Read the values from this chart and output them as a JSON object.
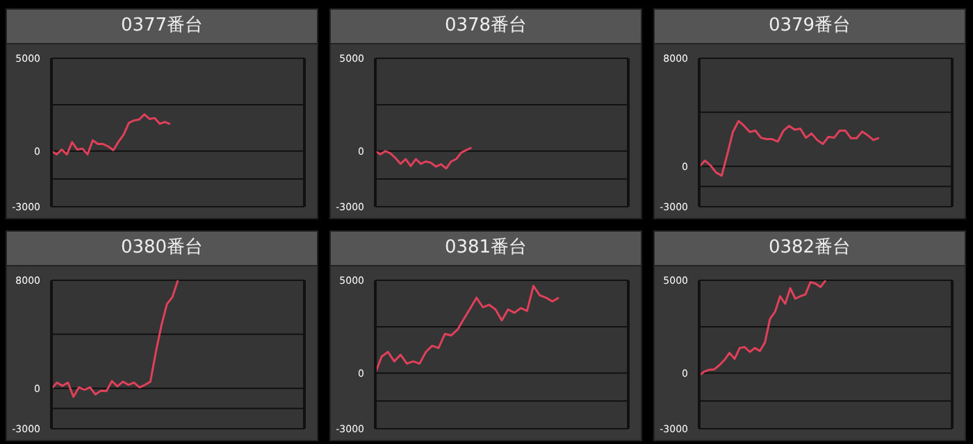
{
  "chart_data": [
    {
      "type": "line",
      "title": "0377番台",
      "color": "#e0405a",
      "marker": "none",
      "grid": "y",
      "tick_labels": "y",
      "ylim": [
        -3000,
        5000
      ],
      "yticks": [
        -3000,
        {
          "value": -1500,
          "label": null
        },
        0,
        {
          "value": 2500,
          "label": null
        },
        5000
      ],
      "categories": [
        null,
        null,
        null,
        null,
        null,
        null,
        null,
        null,
        null,
        null,
        null,
        null,
        null,
        null,
        null,
        null,
        null,
        null,
        null,
        null,
        null,
        null,
        null,
        null,
        null,
        null,
        null,
        null,
        null,
        null,
        null,
        null,
        null,
        null,
        null,
        null,
        null,
        null,
        null,
        null,
        null,
        null,
        null,
        null,
        null,
        null,
        null,
        null,
        null,
        null
      ],
      "values": [
        0,
        -180,
        80,
        -180,
        480,
        80,
        130,
        -180,
        580,
        380,
        380,
        250,
        50,
        510,
        890,
        1520,
        1650,
        1700,
        1980,
        1730,
        1780,
        1470,
        1570,
        1450,
        null,
        null,
        null,
        null,
        null,
        null,
        null,
        null,
        null,
        null,
        null,
        null,
        null,
        null,
        null,
        null,
        null,
        null,
        null,
        null,
        null,
        null,
        null,
        null,
        null,
        null
      ]
    },
    {
      "type": "line",
      "title": "0378番台",
      "color": "#e0405a",
      "marker": "none",
      "grid": "y",
      "tick_labels": "y",
      "ylim": [
        -3000,
        5000
      ],
      "yticks": [
        -3000,
        {
          "value": -1500,
          "label": null
        },
        0,
        {
          "value": 2500,
          "label": null
        },
        5000
      ],
      "categories": [
        null,
        null,
        null,
        null,
        null,
        null,
        null,
        null,
        null,
        null,
        null,
        null,
        null,
        null,
        null,
        null,
        null,
        null,
        null,
        null,
        null,
        null,
        null,
        null,
        null,
        null,
        null,
        null,
        null,
        null,
        null,
        null,
        null,
        null,
        null,
        null,
        null,
        null,
        null,
        null,
        null,
        null,
        null,
        null,
        null,
        null,
        null,
        null,
        null,
        null,
        null
      ],
      "values": [
        0,
        -180,
        0,
        -130,
        -380,
        -690,
        -430,
        -810,
        -430,
        -690,
        -560,
        -630,
        -840,
        -710,
        -940,
        -560,
        -430,
        -80,
        50,
        180,
        null,
        null,
        null,
        null,
        null,
        null,
        null,
        null,
        null,
        null,
        null,
        null,
        null,
        null,
        null,
        null,
        null,
        null,
        null,
        null,
        null,
        null,
        null,
        null,
        null,
        null,
        null,
        null,
        null,
        null,
        null
      ]
    },
    {
      "type": "line",
      "title": "0379番台",
      "color": "#e0405a",
      "marker": "none",
      "grid": "y",
      "tick_labels": "y",
      "ylim": [
        -3000,
        8000
      ],
      "yticks": [
        -3000,
        {
          "value": -1500,
          "label": null
        },
        0,
        {
          "value": 4000,
          "label": null
        },
        8000
      ],
      "categories": [
        null,
        null,
        null,
        null,
        null,
        null,
        null,
        null,
        null,
        null,
        null,
        null,
        null,
        null,
        null,
        null,
        null,
        null,
        null,
        null,
        null,
        null,
        null,
        null,
        null,
        null,
        null,
        null,
        null,
        null,
        null,
        null,
        null,
        null,
        null,
        null,
        null,
        null,
        null,
        null,
        null,
        null,
        null,
        null,
        null,
        null
      ],
      "values": [
        -40,
        420,
        70,
        -460,
        -700,
        880,
        2540,
        3350,
        2990,
        2540,
        2640,
        2110,
        2010,
        2010,
        1830,
        2640,
        2990,
        2710,
        2780,
        2110,
        2430,
        1940,
        1650,
        2180,
        2110,
        2640,
        2640,
        2080,
        2080,
        2570,
        2290,
        1940,
        2110,
        null,
        null,
        null,
        null,
        null,
        null,
        null,
        null,
        null,
        null,
        null,
        null,
        null
      ]
    },
    {
      "type": "line",
      "title": "0380番台",
      "color": "#e0405a",
      "marker": "none",
      "grid": "y",
      "tick_labels": "y",
      "ylim": [
        -3000,
        8000
      ],
      "yticks": [
        -3000,
        {
          "value": -1500,
          "label": null
        },
        0,
        {
          "value": 4000,
          "label": null
        },
        8000
      ],
      "categories": [
        null,
        null,
        null,
        null,
        null,
        null,
        null,
        null,
        null,
        null,
        null,
        null,
        null,
        null,
        null,
        null,
        null,
        null,
        null,
        null,
        null,
        null,
        null,
        null,
        null,
        null,
        null,
        null,
        null,
        null,
        null,
        null,
        null,
        null,
        null,
        null,
        null,
        null,
        null,
        null,
        null,
        null,
        null,
        null,
        null,
        null,
        null
      ],
      "values": [
        -40,
        420,
        180,
        420,
        -630,
        70,
        -110,
        70,
        -460,
        -180,
        -210,
        530,
        140,
        490,
        250,
        420,
        70,
        250,
        490,
        2710,
        4650,
        6230,
        6760,
        8000,
        null,
        null,
        null,
        null,
        null,
        null,
        null,
        null,
        null,
        null,
        null,
        null,
        null,
        null,
        null,
        null,
        null,
        null,
        null,
        null,
        null,
        null,
        null
      ]
    },
    {
      "type": "line",
      "title": "0381番台",
      "color": "#e0405a",
      "marker": "none",
      "grid": "y",
      "tick_labels": "y",
      "ylim": [
        -3000,
        5000
      ],
      "yticks": [
        -3000,
        {
          "value": -1500,
          "label": null
        },
        0,
        {
          "value": 2500,
          "label": null
        },
        5000
      ],
      "categories": [
        null,
        null,
        null,
        null,
        null,
        null,
        null,
        null,
        null,
        null,
        null,
        null,
        null,
        null,
        null,
        null,
        null,
        null,
        null,
        null,
        null,
        null,
        null,
        null,
        null,
        null,
        null,
        null,
        null,
        null,
        null,
        null,
        null,
        null,
        null,
        null,
        null,
        null,
        null,
        null,
        null
      ],
      "values": [
        0,
        890,
        1140,
        630,
        990,
        510,
        630,
        510,
        1140,
        1470,
        1350,
        2110,
        2030,
        2340,
        2920,
        3480,
        4060,
        3550,
        3680,
        3430,
        2840,
        3430,
        3250,
        3500,
        3350,
        4700,
        4190,
        4060,
        3860,
        4060,
        null,
        null,
        null,
        null,
        null,
        null,
        null,
        null,
        null,
        null,
        null
      ]
    },
    {
      "type": "line",
      "title": "0382番台",
      "color": "#e0405a",
      "marker": "none",
      "grid": "y",
      "tick_labels": "y",
      "ylim": [
        -3000,
        5000
      ],
      "yticks": [
        -3000,
        {
          "value": -1500,
          "label": null
        },
        0,
        {
          "value": 2500,
          "label": null
        },
        5000
      ],
      "categories": [
        null,
        null,
        null,
        null,
        null,
        null,
        null,
        null,
        null,
        null,
        null,
        null,
        null,
        null,
        null,
        null,
        null,
        null,
        null,
        null,
        null,
        null,
        null,
        null,
        null,
        null,
        null,
        null,
        null,
        null,
        null,
        null,
        null,
        null,
        null,
        null,
        null,
        null,
        null,
        null,
        null,
        null,
        null,
        null,
        null,
        null,
        null,
        null,
        null,
        null,
        null
      ],
      "values": [
        -130,
        80,
        180,
        200,
        430,
        710,
        1090,
        760,
        1350,
        1400,
        1140,
        1350,
        1190,
        1650,
        2920,
        3300,
        4140,
        3730,
        4570,
        4010,
        4140,
        4240,
        4900,
        4820,
        4640,
        5000,
        null,
        null,
        null,
        null,
        null,
        null,
        null,
        null,
        null,
        null,
        null,
        null,
        null,
        null,
        null,
        null,
        null,
        null,
        null,
        null,
        null,
        null,
        null,
        null,
        null
      ]
    }
  ]
}
